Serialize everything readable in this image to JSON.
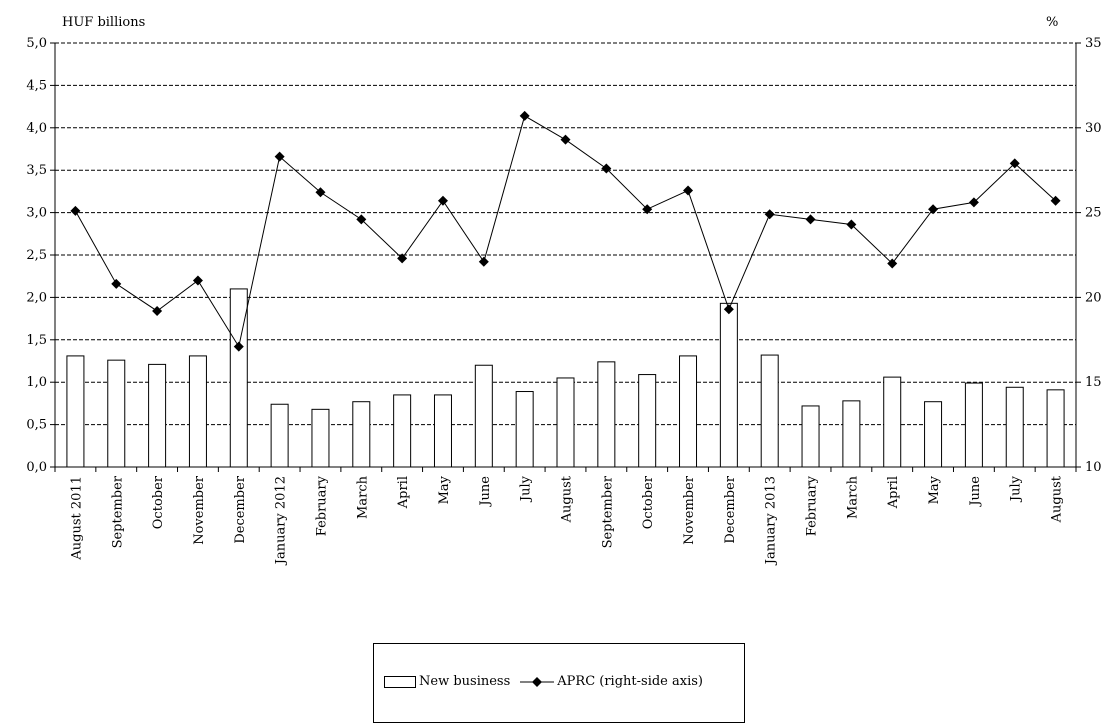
{
  "chart_data": {
    "type": "bar+line",
    "left_axis_unit": "HUF billions",
    "right_axis_unit": "%",
    "categories": [
      "August 2011",
      "September",
      "October",
      "November",
      "December",
      "January 2012",
      "February",
      "March",
      "April",
      "May",
      "June",
      "July",
      "August",
      "September",
      "October",
      "November",
      "December",
      "January 2013",
      "February",
      "March",
      "April",
      "May",
      "June",
      "July",
      "August"
    ],
    "ylim_left": [
      0,
      5
    ],
    "yticks_left": [
      "0,0",
      "0,5",
      "1,0",
      "1,5",
      "2,0",
      "2,5",
      "3,0",
      "3,5",
      "4,0",
      "4,5",
      "5,0"
    ],
    "ylim_right": [
      10,
      35
    ],
    "yticks_right": [
      "10",
      "15",
      "20",
      "25",
      "30",
      "35"
    ],
    "grid": "horizontal dashed",
    "series": [
      {
        "name": "New business",
        "type": "bar",
        "axis": "left",
        "values": [
          1.31,
          1.26,
          1.21,
          1.31,
          2.1,
          0.74,
          0.68,
          0.77,
          0.85,
          0.85,
          1.2,
          0.89,
          1.05,
          1.24,
          1.09,
          1.31,
          1.93,
          1.32,
          0.72,
          0.78,
          1.06,
          0.77,
          0.99,
          0.94,
          0.91
        ]
      },
      {
        "name": "APRC (right-side axis)",
        "type": "line",
        "axis": "right",
        "marker": "diamond",
        "values": [
          25.1,
          20.8,
          19.2,
          21.0,
          17.1,
          28.3,
          26.2,
          24.6,
          22.3,
          25.7,
          22.1,
          30.7,
          29.3,
          27.6,
          25.2,
          26.3,
          19.3,
          24.9,
          24.6,
          24.3,
          22.0,
          25.2,
          25.6,
          27.9,
          25.7
        ]
      }
    ],
    "legend_position": "bottom-center"
  },
  "legend": {
    "bar_label": "New business",
    "line_label": "APRC (right-side axis)"
  }
}
